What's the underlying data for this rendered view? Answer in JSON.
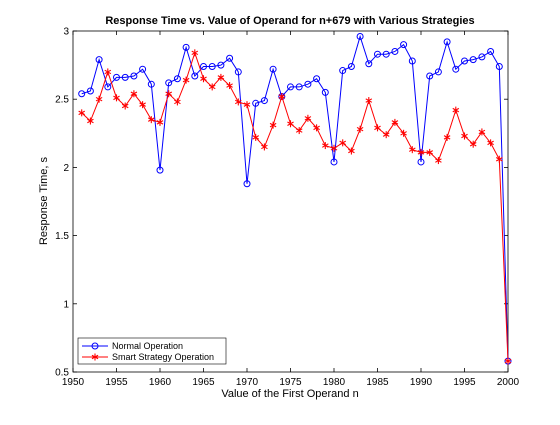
{
  "chart_data": {
    "type": "line",
    "title": "Response Time vs. Value of Operand for n+679 with Various Strategies",
    "xlabel": "Value of the First Operand n",
    "ylabel": "Response Time, s",
    "xlim": [
      1950,
      2000
    ],
    "ylim": [
      0.5,
      3
    ],
    "x_ticks": [
      1950,
      1955,
      1960,
      1965,
      1970,
      1975,
      1980,
      1985,
      1990,
      1995,
      2000
    ],
    "y_ticks": [
      0.5,
      1,
      1.5,
      2,
      2.5,
      3
    ],
    "grid": false,
    "legend_position": "bottom-left",
    "x": [
      1951,
      1952,
      1953,
      1954,
      1955,
      1956,
      1957,
      1958,
      1959,
      1960,
      1961,
      1962,
      1963,
      1964,
      1965,
      1966,
      1967,
      1968,
      1969,
      1970,
      1971,
      1972,
      1973,
      1974,
      1975,
      1976,
      1977,
      1978,
      1979,
      1980,
      1981,
      1982,
      1983,
      1984,
      1985,
      1986,
      1987,
      1988,
      1989,
      1990,
      1991,
      1992,
      1993,
      1994,
      1995,
      1996,
      1997,
      1998,
      1999,
      2000
    ],
    "series": [
      {
        "name": "Normal Operation",
        "color": "#0000ff",
        "marker": "circle",
        "values": [
          2.54,
          2.56,
          2.79,
          2.59,
          2.66,
          2.66,
          2.67,
          2.72,
          2.61,
          1.98,
          2.62,
          2.65,
          2.88,
          2.67,
          2.74,
          2.74,
          2.75,
          2.8,
          2.7,
          1.88,
          2.47,
          2.49,
          2.72,
          2.52,
          2.59,
          2.59,
          2.61,
          2.65,
          2.55,
          2.04,
          2.71,
          2.74,
          2.96,
          2.76,
          2.83,
          2.83,
          2.85,
          2.9,
          2.78,
          2.04,
          2.67,
          2.7,
          2.92,
          2.72,
          2.78,
          2.79,
          2.81,
          2.85,
          2.74,
          0.58
        ]
      },
      {
        "name": "Smart Strategy Operation",
        "color": "#ff0000",
        "marker": "star",
        "values": [
          2.4,
          2.34,
          2.5,
          2.7,
          2.51,
          2.45,
          2.54,
          2.46,
          2.35,
          2.33,
          2.54,
          2.48,
          2.64,
          2.84,
          2.65,
          2.59,
          2.66,
          2.6,
          2.48,
          2.46,
          2.22,
          2.15,
          2.31,
          2.52,
          2.32,
          2.27,
          2.36,
          2.29,
          2.16,
          2.14,
          2.18,
          2.12,
          2.28,
          2.49,
          2.29,
          2.24,
          2.33,
          2.25,
          2.13,
          2.11,
          2.11,
          2.05,
          2.22,
          2.42,
          2.23,
          2.17,
          2.26,
          2.18,
          2.06,
          0.58
        ]
      }
    ]
  }
}
